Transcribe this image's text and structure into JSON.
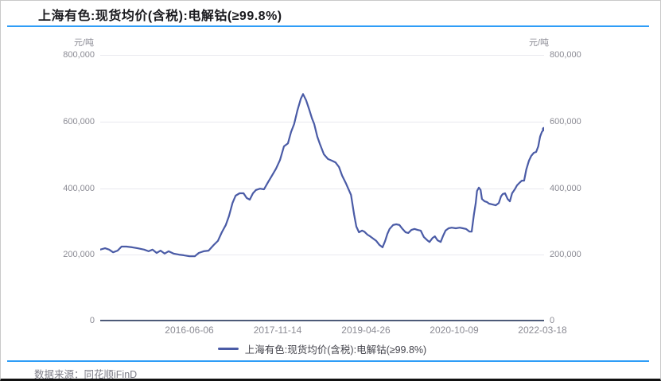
{
  "header": {
    "title": "上海有色:现货均价(含税):电解钴(≥99.8%)",
    "rule_color": "#2e9df7"
  },
  "chart": {
    "unit_left": "元/吨",
    "unit_right": "元/吨",
    "y_ticks": [
      "800,000",
      "600,000",
      "400,000",
      "200,000",
      "0"
    ],
    "x_ticks": [
      "2016-06-06",
      "2017-11-14",
      "2019-04-26",
      "2020-10-09",
      "2022-03-18"
    ],
    "colors": {
      "line": "#4a5ba6",
      "grid": "#e9e9ef",
      "axis": "#4d5a78",
      "tick_text": "#8b8b94"
    }
  },
  "legend": {
    "label": "上海有色:现货均价(含税):电解钴(≥99.8%)",
    "marker_color": "#4a5ba6"
  },
  "footer": {
    "source_label": "数据来源：同花顺iFinD",
    "rule_color": "#2e9df7"
  },
  "chart_data": {
    "type": "line",
    "title": "上海有色:现货均价(含税):电解钴(≥99.8%)",
    "ylabel": "元/吨",
    "ylim": [
      0,
      800000
    ],
    "y_tick_values": [
      0,
      200000,
      400000,
      600000,
      800000
    ],
    "x_tick_labels": [
      "2016-06-06",
      "2017-11-14",
      "2019-04-26",
      "2020-10-09",
      "2022-03-18"
    ],
    "grid": true,
    "legend_position": "bottom",
    "series": [
      {
        "name": "上海有色:现货均价(含税):电解钴(≥99.8%)",
        "color": "#4a5ba6",
        "points": [
          [
            0.0,
            213000
          ],
          [
            0.011,
            217000
          ],
          [
            0.02,
            213000
          ],
          [
            0.029,
            205000
          ],
          [
            0.039,
            210000
          ],
          [
            0.048,
            222000
          ],
          [
            0.059,
            222000
          ],
          [
            0.072,
            220000
          ],
          [
            0.084,
            217000
          ],
          [
            0.099,
            213000
          ],
          [
            0.109,
            208000
          ],
          [
            0.118,
            213000
          ],
          [
            0.127,
            203000
          ],
          [
            0.136,
            210000
          ],
          [
            0.145,
            201000
          ],
          [
            0.154,
            208000
          ],
          [
            0.165,
            201000
          ],
          [
            0.177,
            198000
          ],
          [
            0.188,
            196000
          ],
          [
            0.201,
            193000
          ],
          [
            0.213,
            193000
          ],
          [
            0.222,
            203000
          ],
          [
            0.233,
            208000
          ],
          [
            0.244,
            210000
          ],
          [
            0.256,
            227000
          ],
          [
            0.265,
            239000
          ],
          [
            0.274,
            265000
          ],
          [
            0.283,
            287000
          ],
          [
            0.29,
            313000
          ],
          [
            0.298,
            353000
          ],
          [
            0.305,
            375000
          ],
          [
            0.314,
            382000
          ],
          [
            0.323,
            382000
          ],
          [
            0.33,
            368000
          ],
          [
            0.337,
            363000
          ],
          [
            0.344,
            382000
          ],
          [
            0.351,
            392000
          ],
          [
            0.36,
            396000
          ],
          [
            0.369,
            394000
          ],
          [
            0.378,
            415000
          ],
          [
            0.387,
            435000
          ],
          [
            0.396,
            456000
          ],
          [
            0.405,
            482000
          ],
          [
            0.414,
            523000
          ],
          [
            0.423,
            532000
          ],
          [
            0.43,
            566000
          ],
          [
            0.437,
            590000
          ],
          [
            0.444,
            630000
          ],
          [
            0.452,
            666000
          ],
          [
            0.457,
            680000
          ],
          [
            0.464,
            661000
          ],
          [
            0.471,
            633000
          ],
          [
            0.477,
            607000
          ],
          [
            0.482,
            590000
          ],
          [
            0.489,
            552000
          ],
          [
            0.495,
            530000
          ],
          [
            0.504,
            499000
          ],
          [
            0.513,
            485000
          ],
          [
            0.522,
            480000
          ],
          [
            0.53,
            475000
          ],
          [
            0.538,
            461000
          ],
          [
            0.545,
            435000
          ],
          [
            0.554,
            411000
          ],
          [
            0.565,
            377000
          ],
          [
            0.572,
            318000
          ],
          [
            0.577,
            282000
          ],
          [
            0.583,
            265000
          ],
          [
            0.59,
            270000
          ],
          [
            0.595,
            267000
          ],
          [
            0.602,
            258000
          ],
          [
            0.608,
            253000
          ],
          [
            0.615,
            246000
          ],
          [
            0.622,
            239000
          ],
          [
            0.629,
            227000
          ],
          [
            0.636,
            220000
          ],
          [
            0.642,
            239000
          ],
          [
            0.647,
            260000
          ],
          [
            0.652,
            275000
          ],
          [
            0.66,
            287000
          ],
          [
            0.667,
            289000
          ],
          [
            0.674,
            287000
          ],
          [
            0.681,
            275000
          ],
          [
            0.688,
            265000
          ],
          [
            0.694,
            263000
          ],
          [
            0.701,
            272000
          ],
          [
            0.708,
            275000
          ],
          [
            0.715,
            272000
          ],
          [
            0.722,
            270000
          ],
          [
            0.729,
            251000
          ],
          [
            0.737,
            241000
          ],
          [
            0.742,
            236000
          ],
          [
            0.749,
            248000
          ],
          [
            0.754,
            253000
          ],
          [
            0.76,
            241000
          ],
          [
            0.767,
            236000
          ],
          [
            0.772,
            253000
          ],
          [
            0.778,
            270000
          ],
          [
            0.785,
            277000
          ],
          [
            0.792,
            279000
          ],
          [
            0.801,
            277000
          ],
          [
            0.81,
            279000
          ],
          [
            0.817,
            277000
          ],
          [
            0.824,
            275000
          ],
          [
            0.832,
            267000
          ],
          [
            0.837,
            267000
          ],
          [
            0.842,
            318000
          ],
          [
            0.846,
            353000
          ],
          [
            0.849,
            389000
          ],
          [
            0.853,
            399000
          ],
          [
            0.857,
            392000
          ],
          [
            0.86,
            365000
          ],
          [
            0.866,
            358000
          ],
          [
            0.871,
            356000
          ],
          [
            0.876,
            351000
          ],
          [
            0.883,
            349000
          ],
          [
            0.891,
            346000
          ],
          [
            0.898,
            353000
          ],
          [
            0.903,
            373000
          ],
          [
            0.907,
            380000
          ],
          [
            0.912,
            382000
          ],
          [
            0.918,
            365000
          ],
          [
            0.923,
            358000
          ],
          [
            0.928,
            382000
          ],
          [
            0.934,
            394000
          ],
          [
            0.939,
            406000
          ],
          [
            0.944,
            413000
          ],
          [
            0.95,
            420000
          ],
          [
            0.955,
            420000
          ],
          [
            0.96,
            454000
          ],
          [
            0.966,
            480000
          ],
          [
            0.971,
            494000
          ],
          [
            0.977,
            504000
          ],
          [
            0.982,
            506000
          ],
          [
            0.987,
            523000
          ],
          [
            0.991,
            552000
          ],
          [
            0.995,
            566000
          ],
          [
            1.0,
            575000
          ]
        ]
      }
    ]
  }
}
